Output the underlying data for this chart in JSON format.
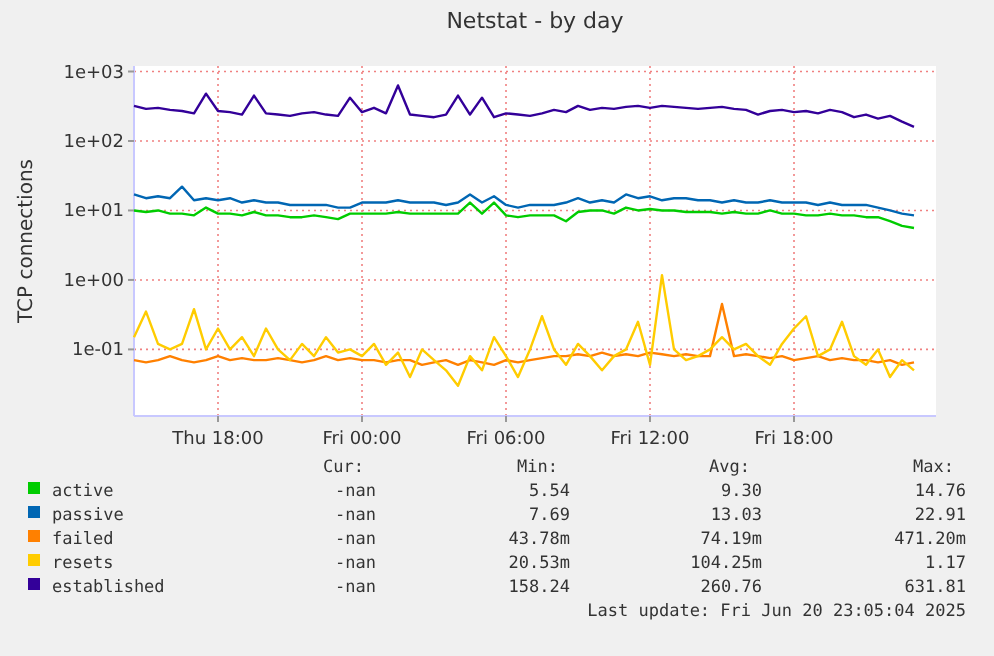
{
  "chart_data": {
    "type": "line",
    "title": "Netstat - by day",
    "ylabel": "TCP connections",
    "log": "y",
    "grid": true,
    "legend": "bottom",
    "marker": "none",
    "line_style": "solid",
    "xlim": [
      "2025-06-19T14:30",
      "2025-06-20T23:55"
    ],
    "xticks": [
      {
        "value": "2025-06-19T18:00",
        "label": "Thu 18:00"
      },
      {
        "value": "2025-06-20T00:00",
        "label": "Fri 00:00"
      },
      {
        "value": "2025-06-20T06:00",
        "label": "Fri 06:00"
      },
      {
        "value": "2025-06-20T12:00",
        "label": "Fri 12:00"
      },
      {
        "value": "2025-06-20T18:00",
        "label": "Fri 18:00"
      }
    ],
    "ylim": [
      0.011,
      1200
    ],
    "yticks": [
      {
        "value": 0.1,
        "label": "1e-01"
      },
      {
        "value": 1,
        "label": "1e+00"
      },
      {
        "value": 10,
        "label": "1e+01"
      },
      {
        "value": 100,
        "label": "1e+02"
      },
      {
        "value": 1000,
        "label": "1e+03"
      }
    ],
    "x": [
      "2025-06-19T14:30",
      "2025-06-19T15:00",
      "2025-06-19T15:30",
      "2025-06-19T16:00",
      "2025-06-19T16:30",
      "2025-06-19T17:00",
      "2025-06-19T17:30",
      "2025-06-19T18:00",
      "2025-06-19T18:30",
      "2025-06-19T19:00",
      "2025-06-19T19:30",
      "2025-06-19T20:00",
      "2025-06-19T20:30",
      "2025-06-19T21:00",
      "2025-06-19T21:30",
      "2025-06-19T22:00",
      "2025-06-19T22:30",
      "2025-06-19T23:00",
      "2025-06-19T23:30",
      "2025-06-20T00:00",
      "2025-06-20T00:30",
      "2025-06-20T01:00",
      "2025-06-20T01:30",
      "2025-06-20T02:00",
      "2025-06-20T02:30",
      "2025-06-20T03:00",
      "2025-06-20T03:30",
      "2025-06-20T04:00",
      "2025-06-20T04:30",
      "2025-06-20T05:00",
      "2025-06-20T05:30",
      "2025-06-20T06:00",
      "2025-06-20T06:30",
      "2025-06-20T07:00",
      "2025-06-20T07:30",
      "2025-06-20T08:00",
      "2025-06-20T08:30",
      "2025-06-20T09:00",
      "2025-06-20T09:30",
      "2025-06-20T10:00",
      "2025-06-20T10:30",
      "2025-06-20T11:00",
      "2025-06-20T11:30",
      "2025-06-20T12:00",
      "2025-06-20T12:30",
      "2025-06-20T13:00",
      "2025-06-20T13:30",
      "2025-06-20T14:00",
      "2025-06-20T14:30",
      "2025-06-20T15:00",
      "2025-06-20T15:30",
      "2025-06-20T16:00",
      "2025-06-20T16:30",
      "2025-06-20T17:00",
      "2025-06-20T17:30",
      "2025-06-20T18:00",
      "2025-06-20T18:30",
      "2025-06-20T19:00",
      "2025-06-20T19:30",
      "2025-06-20T20:00",
      "2025-06-20T20:30",
      "2025-06-20T21:00",
      "2025-06-20T21:30",
      "2025-06-20T22:00",
      "2025-06-20T22:30",
      "2025-06-20T23:00"
    ],
    "series": [
      {
        "name": "active",
        "color": "#00cc00",
        "values": [
          10,
          9.5,
          10,
          9,
          9,
          8.5,
          11,
          9,
          9,
          8.5,
          9.5,
          8.5,
          8.5,
          8,
          8,
          8.5,
          8,
          7.5,
          9,
          9,
          9,
          9,
          9.5,
          9,
          9,
          9,
          9,
          9,
          13,
          9,
          13,
          8.5,
          8,
          8.5,
          8.5,
          8.5,
          7,
          9.5,
          10,
          10,
          9,
          11,
          10,
          10.5,
          10,
          10,
          9.5,
          9.5,
          9.5,
          9,
          9.5,
          9,
          9,
          10,
          9,
          9,
          8.5,
          8.5,
          9,
          8.5,
          8.5,
          8,
          8,
          7,
          6,
          5.6
        ]
      },
      {
        "name": "passive",
        "color": "#0066b3",
        "values": [
          17,
          15,
          16,
          15,
          22,
          14,
          15,
          14,
          15,
          13,
          14,
          13,
          13,
          12,
          12,
          12,
          12,
          11,
          11,
          13,
          13,
          13,
          14,
          13,
          13,
          13,
          12,
          13,
          17,
          13,
          16,
          12,
          11,
          12,
          12,
          12,
          13,
          15,
          13,
          14,
          13,
          17,
          15,
          16,
          14,
          15,
          15,
          14,
          14,
          13,
          14,
          13,
          13,
          14,
          13,
          13,
          13,
          12,
          13,
          12,
          12,
          12,
          11,
          10,
          9,
          8.5
        ]
      },
      {
        "name": "failed",
        "color": "#ff8000",
        "values": [
          0.07,
          0.065,
          0.07,
          0.08,
          0.07,
          0.065,
          0.07,
          0.08,
          0.07,
          0.075,
          0.07,
          0.07,
          0.075,
          0.07,
          0.065,
          0.07,
          0.08,
          0.07,
          0.075,
          0.07,
          0.07,
          0.065,
          0.07,
          0.07,
          0.06,
          0.065,
          0.07,
          0.06,
          0.07,
          0.065,
          0.06,
          0.07,
          0.065,
          0.07,
          0.075,
          0.08,
          0.08,
          0.085,
          0.08,
          0.09,
          0.08,
          0.085,
          0.08,
          0.09,
          0.085,
          0.08,
          0.085,
          0.08,
          0.08,
          0.45,
          0.08,
          0.085,
          0.08,
          0.075,
          0.08,
          0.07,
          0.075,
          0.08,
          0.07,
          0.075,
          0.07,
          0.07,
          0.065,
          0.07,
          0.06,
          0.065
        ]
      },
      {
        "name": "resets",
        "color": "#ffcc00",
        "values": [
          0.15,
          0.35,
          0.12,
          0.1,
          0.12,
          0.38,
          0.1,
          0.2,
          0.1,
          0.15,
          0.08,
          0.2,
          0.1,
          0.07,
          0.12,
          0.08,
          0.15,
          0.09,
          0.1,
          0.08,
          0.12,
          0.06,
          0.09,
          0.04,
          0.1,
          0.07,
          0.05,
          0.03,
          0.08,
          0.05,
          0.15,
          0.08,
          0.04,
          0.1,
          0.3,
          0.1,
          0.06,
          0.12,
          0.08,
          0.05,
          0.08,
          0.1,
          0.25,
          0.06,
          1.17,
          0.1,
          0.07,
          0.08,
          0.1,
          0.15,
          0.1,
          0.12,
          0.08,
          0.06,
          0.12,
          0.2,
          0.3,
          0.08,
          0.1,
          0.25,
          0.08,
          0.06,
          0.1,
          0.04,
          0.07,
          0.05
        ]
      },
      {
        "name": "established",
        "color": "#330099",
        "values": [
          320,
          290,
          300,
          280,
          270,
          250,
          480,
          270,
          260,
          240,
          450,
          250,
          240,
          230,
          250,
          260,
          240,
          230,
          420,
          260,
          300,
          250,
          630,
          240,
          230,
          220,
          240,
          450,
          240,
          420,
          220,
          250,
          240,
          230,
          250,
          280,
          260,
          320,
          280,
          300,
          290,
          310,
          320,
          300,
          320,
          310,
          300,
          290,
          300,
          310,
          290,
          280,
          240,
          270,
          280,
          260,
          270,
          250,
          280,
          260,
          220,
          240,
          210,
          230,
          190,
          160
        ]
      }
    ],
    "annotations": [
      "Cur:",
      "Min:",
      "Avg:",
      "Max:",
      "-nan",
      "5.54",
      "9.30",
      "14.76",
      "-nan",
      "7.69",
      "13.03",
      "22.91",
      "-nan",
      "43.78m",
      "74.19m",
      "471.20m",
      "-nan",
      "20.53m",
      "104.25m",
      "1.17",
      "-nan",
      "158.24",
      "260.76",
      "631.81",
      "Last update: Fri Jun 20 23:05:04 2025"
    ]
  }
}
